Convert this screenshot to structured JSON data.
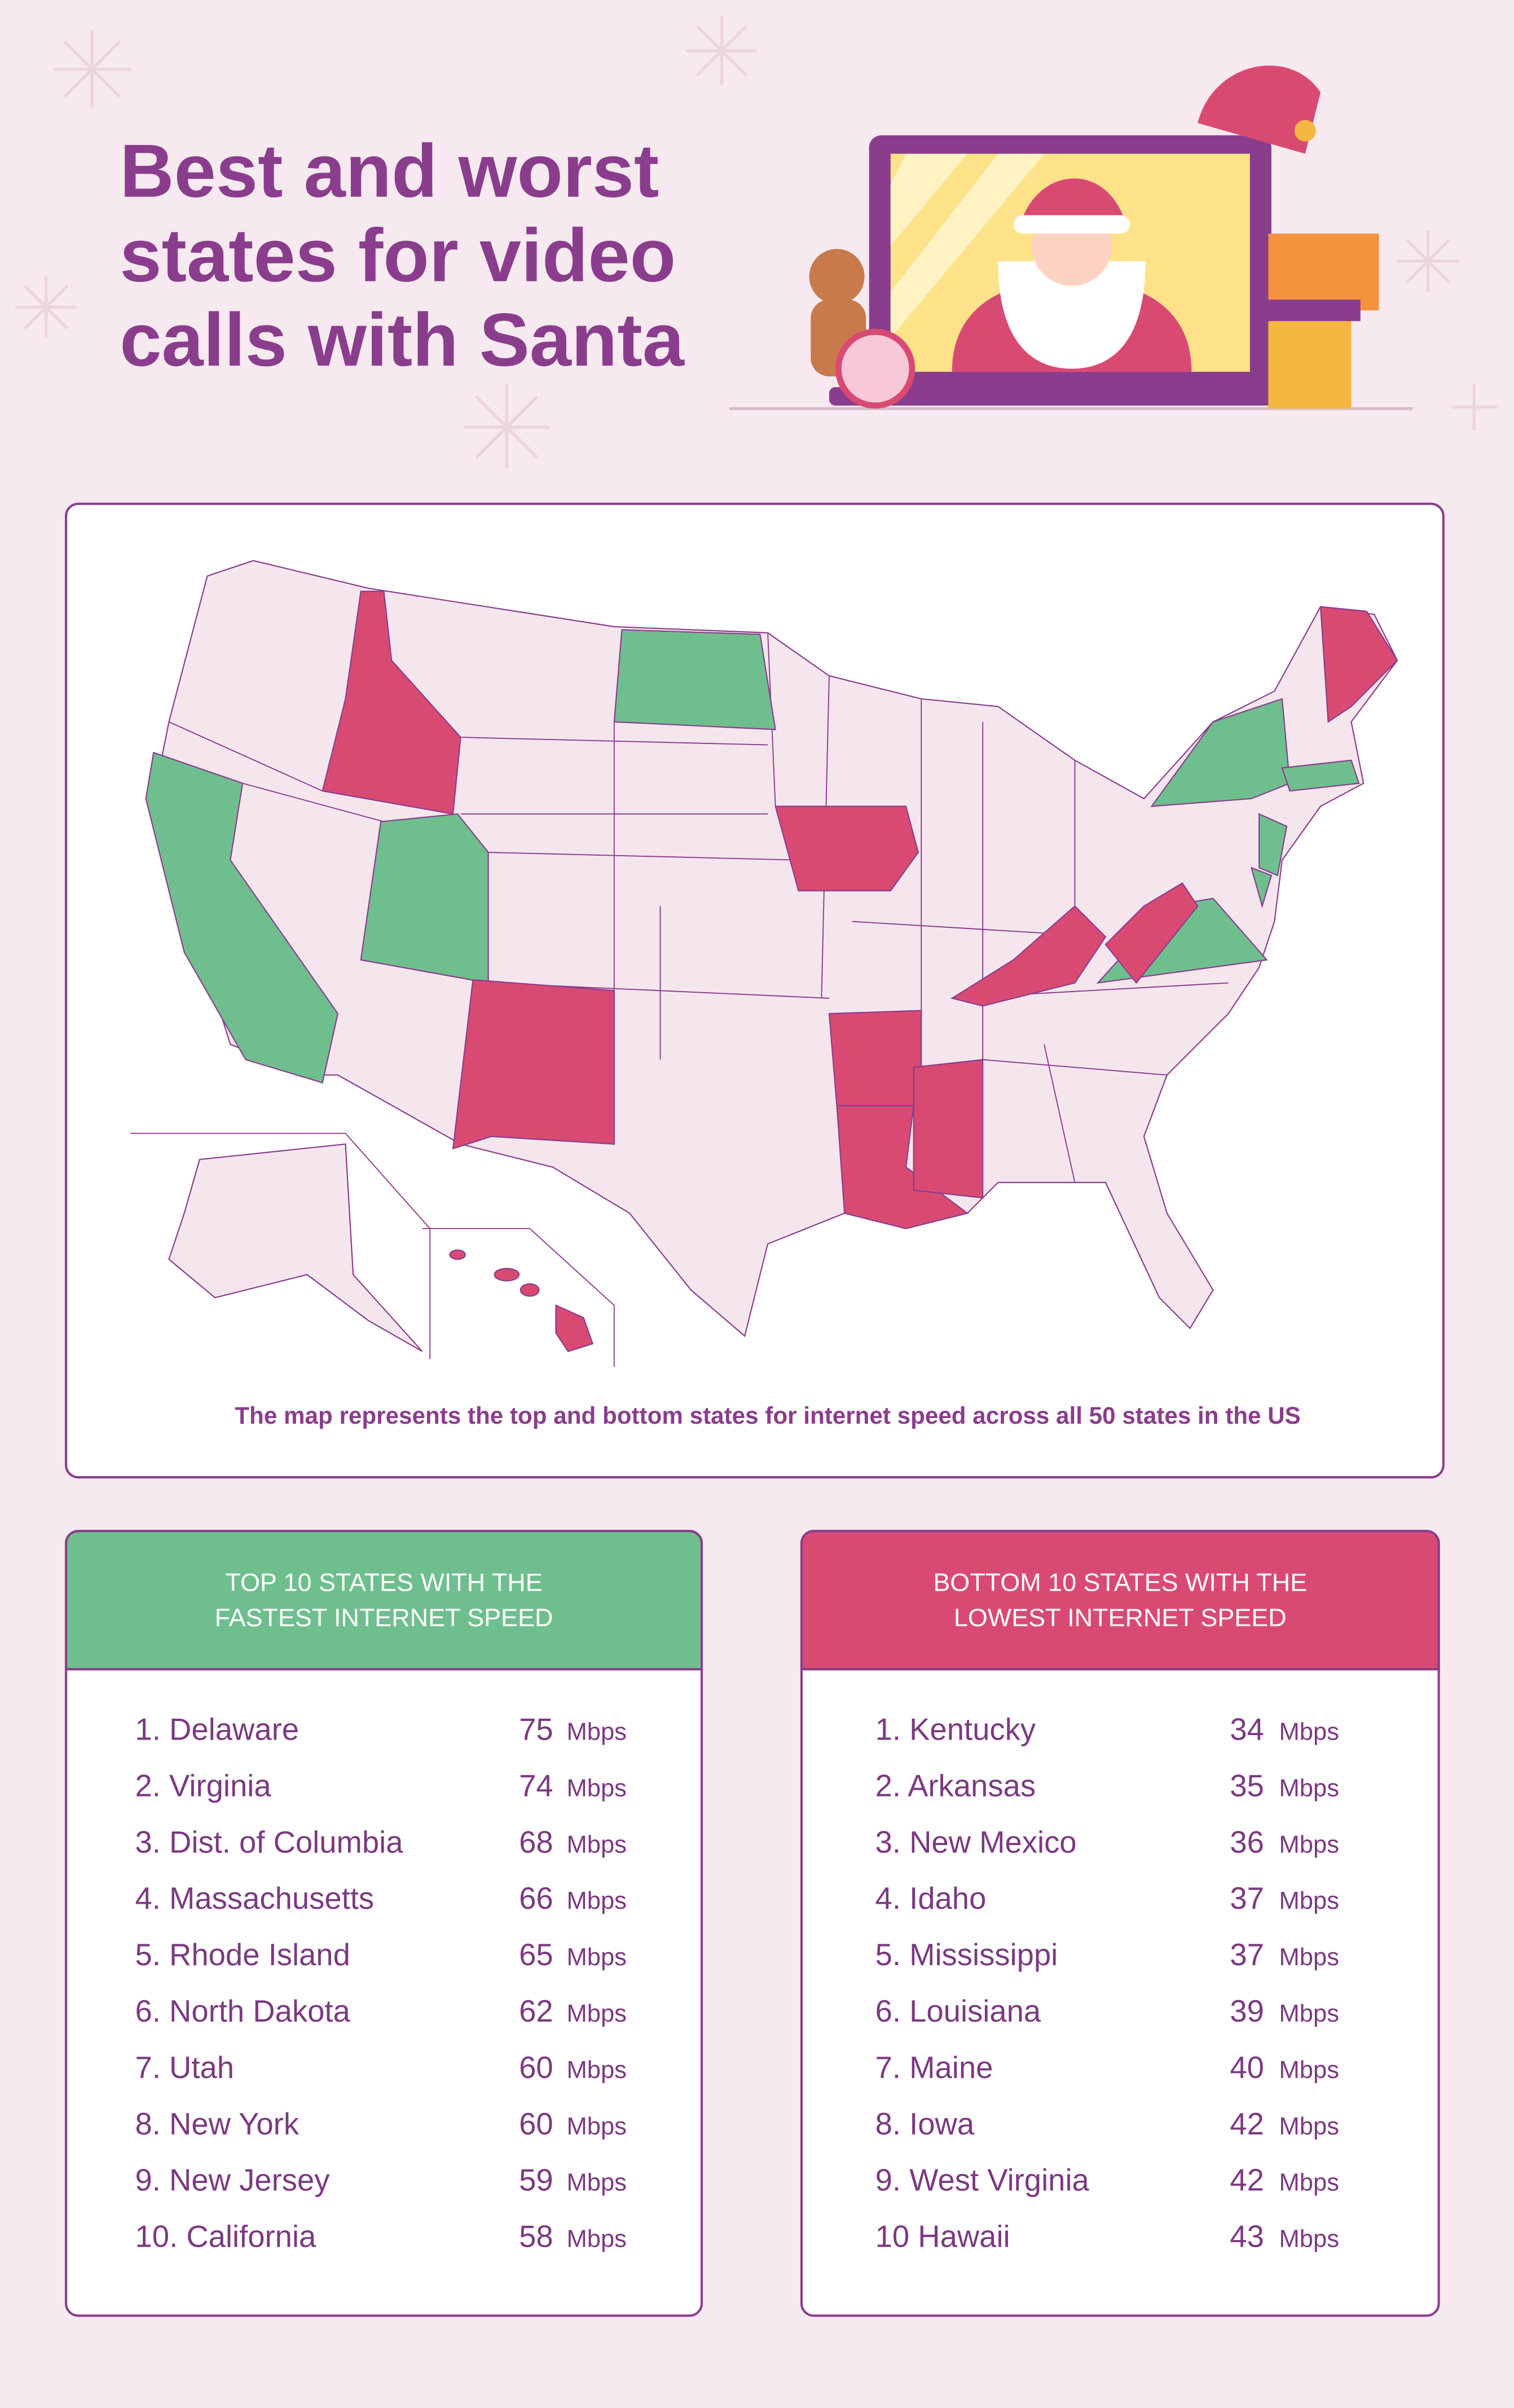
{
  "header": {
    "title": [
      "Best and worst",
      "states for video",
      "calls with Santa"
    ]
  },
  "map": {
    "caption": "The map represents the top and bottom states for internet speed across all 50 states in the US"
  },
  "tables": [
    {
      "title": [
        "TOP 10 STATES WITH THE",
        "FASTEST INTERNET SPEED"
      ],
      "rows": [
        {
          "label": "1. Delaware",
          "speed": 75,
          "unit": "Mbps"
        },
        {
          "label": "2. Virginia",
          "speed": 74,
          "unit": "Mbps"
        },
        {
          "label": "3. Dist. of Columbia",
          "speed": 68,
          "unit": "Mbps"
        },
        {
          "label": "4. Massachusetts",
          "speed": 66,
          "unit": "Mbps"
        },
        {
          "label": "5. Rhode Island",
          "speed": 65,
          "unit": "Mbps"
        },
        {
          "label": "6. North Dakota",
          "speed": 62,
          "unit": "Mbps"
        },
        {
          "label": "7. Utah",
          "speed": 60,
          "unit": "Mbps"
        },
        {
          "label": "8. New York",
          "speed": 60,
          "unit": "Mbps"
        },
        {
          "label": "9. New Jersey",
          "speed": 59,
          "unit": "Mbps"
        },
        {
          "label": "10. California",
          "speed": 58,
          "unit": "Mbps"
        }
      ]
    },
    {
      "title": [
        "BOTTOM 10 STATES WITH THE",
        "LOWEST INTERNET SPEED"
      ],
      "rows": [
        {
          "label": "1. Kentucky",
          "speed": 34,
          "unit": "Mbps"
        },
        {
          "label": "2. Arkansas",
          "speed": 35,
          "unit": "Mbps"
        },
        {
          "label": "3. New Mexico",
          "speed": 36,
          "unit": "Mbps"
        },
        {
          "label": "4. Idaho",
          "speed": 37,
          "unit": "Mbps"
        },
        {
          "label": "5. Mississippi",
          "speed": 37,
          "unit": "Mbps"
        },
        {
          "label": "6. Louisiana",
          "speed": 39,
          "unit": "Mbps"
        },
        {
          "label": "7. Maine",
          "speed": 40,
          "unit": "Mbps"
        },
        {
          "label": "8. Iowa",
          "speed": 42,
          "unit": "Mbps"
        },
        {
          "label": "9. West Virginia",
          "speed": 42,
          "unit": "Mbps"
        },
        {
          "label": "10 Hawaii",
          "speed": 43,
          "unit": "Mbps"
        }
      ]
    }
  ]
}
